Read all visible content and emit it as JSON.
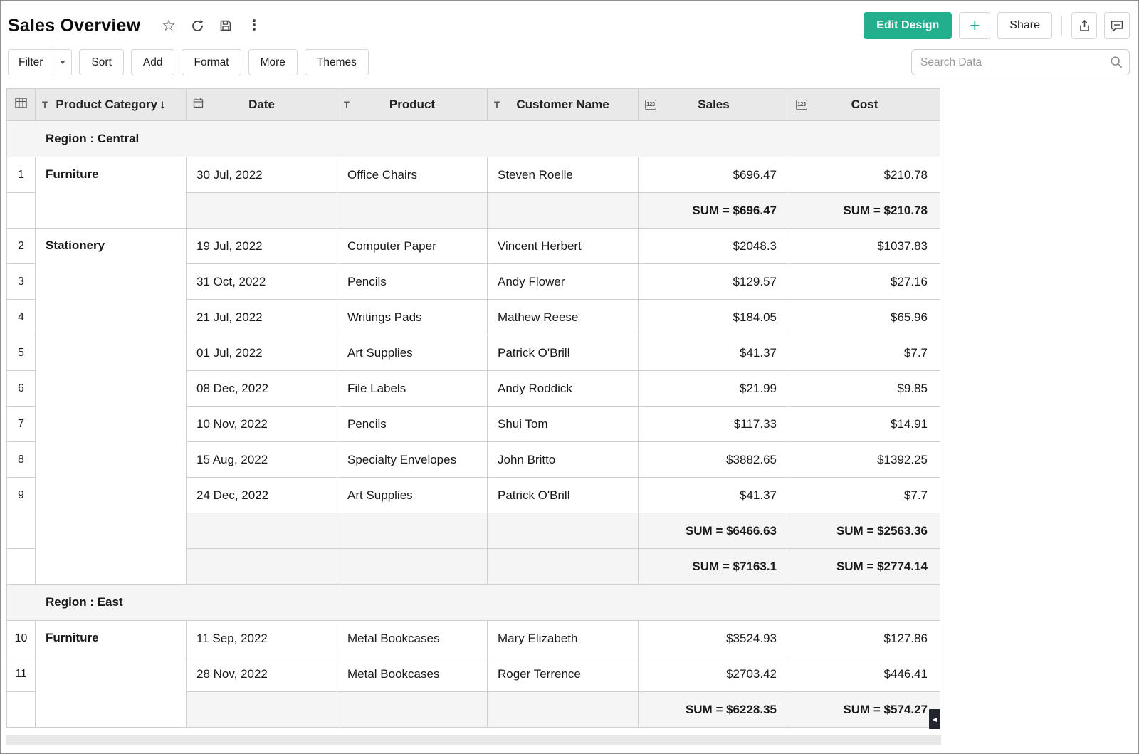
{
  "header": {
    "title": "Sales Overview",
    "edit_design_label": "Edit Design",
    "plus_label": "+",
    "share_label": "Share"
  },
  "toolbar": {
    "filter_label": "Filter",
    "sort_label": "Sort",
    "add_label": "Add",
    "format_label": "Format",
    "more_label": "More",
    "themes_label": "Themes",
    "search_placeholder": "Search Data"
  },
  "icons": {
    "star": "☆",
    "more_vertical": "⋮",
    "text_type": "T",
    "number_type": "123",
    "sort_desc": "↓",
    "scroll_left": "◀"
  },
  "colors": {
    "accent": "#21af8d",
    "table_header_bg": "#e9e9e9",
    "group_row_bg": "#f5f5f5",
    "table_border": "#cfcfcf"
  },
  "table": {
    "columns": [
      {
        "key": "rownum",
        "label": "",
        "icon": "table-grid-icon"
      },
      {
        "key": "product_category",
        "label": "Product Category",
        "icon": "text-type-icon",
        "sort": "desc"
      },
      {
        "key": "date",
        "label": "Date",
        "icon": "calendar-icon"
      },
      {
        "key": "product",
        "label": "Product",
        "icon": "text-type-icon"
      },
      {
        "key": "customer_name",
        "label": "Customer Name",
        "icon": "text-type-icon"
      },
      {
        "key": "sales",
        "label": "Sales",
        "icon": "number-icon"
      },
      {
        "key": "cost",
        "label": "Cost",
        "icon": "number-icon"
      }
    ],
    "rows": [
      {
        "type": "group",
        "label": "Region : Central"
      },
      {
        "type": "data",
        "num": "1",
        "category": {
          "label": "Furniture",
          "span": 2
        },
        "date": "30 Jul, 2022",
        "product": "Office Chairs",
        "customer": "Steven Roelle",
        "sales": "$696.47",
        "cost": "$210.78"
      },
      {
        "type": "sum",
        "sales": "SUM = $696.47",
        "cost": "SUM = $210.78"
      },
      {
        "type": "data",
        "num": "2",
        "category": {
          "label": "Stationery",
          "span": 10
        },
        "date": "19 Jul, 2022",
        "product": "Computer Paper",
        "customer": "Vincent Herbert",
        "sales": "$2048.3",
        "cost": "$1037.83"
      },
      {
        "type": "data",
        "num": "3",
        "date": "31 Oct, 2022",
        "product": "Pencils",
        "customer": "Andy Flower",
        "sales": "$129.57",
        "cost": "$27.16"
      },
      {
        "type": "data",
        "num": "4",
        "date": "21 Jul, 2022",
        "product": "Writings Pads",
        "customer": "Mathew Reese",
        "sales": "$184.05",
        "cost": "$65.96"
      },
      {
        "type": "data",
        "num": "5",
        "date": "01 Jul, 2022",
        "product": "Art Supplies",
        "customer": "Patrick O'Brill",
        "sales": "$41.37",
        "cost": "$7.7"
      },
      {
        "type": "data",
        "num": "6",
        "date": "08 Dec, 2022",
        "product": "File Labels",
        "customer": "Andy Roddick",
        "sales": "$21.99",
        "cost": "$9.85"
      },
      {
        "type": "data",
        "num": "7",
        "date": "10 Nov, 2022",
        "product": "Pencils",
        "customer": "Shui Tom",
        "sales": "$117.33",
        "cost": "$14.91"
      },
      {
        "type": "data",
        "num": "8",
        "date": "15 Aug, 2022",
        "product": "Specialty Envelopes",
        "customer": "John Britto",
        "sales": "$3882.65",
        "cost": "$1392.25"
      },
      {
        "type": "data",
        "num": "9",
        "date": "24 Dec, 2022",
        "product": "Art Supplies",
        "customer": "Patrick O'Brill",
        "sales": "$41.37",
        "cost": "$7.7"
      },
      {
        "type": "sum",
        "sales": "SUM = $6466.63",
        "cost": "SUM = $2563.36"
      },
      {
        "type": "sum",
        "sales": "SUM = $7163.1",
        "cost": "SUM = $2774.14"
      },
      {
        "type": "group",
        "label": "Region : East"
      },
      {
        "type": "data",
        "num": "10",
        "category": {
          "label": "Furniture",
          "span": 3
        },
        "date": "11 Sep, 2022",
        "product": "Metal Bookcases",
        "customer": "Mary Elizabeth",
        "sales": "$3524.93",
        "cost": "$127.86"
      },
      {
        "type": "data",
        "num": "11",
        "date": "28 Nov, 2022",
        "product": "Metal Bookcases",
        "customer": "Roger Terrence",
        "sales": "$2703.42",
        "cost": "$446.41"
      },
      {
        "type": "sum",
        "sales": "SUM = $6228.35",
        "cost": "SUM = $574.27"
      }
    ]
  }
}
